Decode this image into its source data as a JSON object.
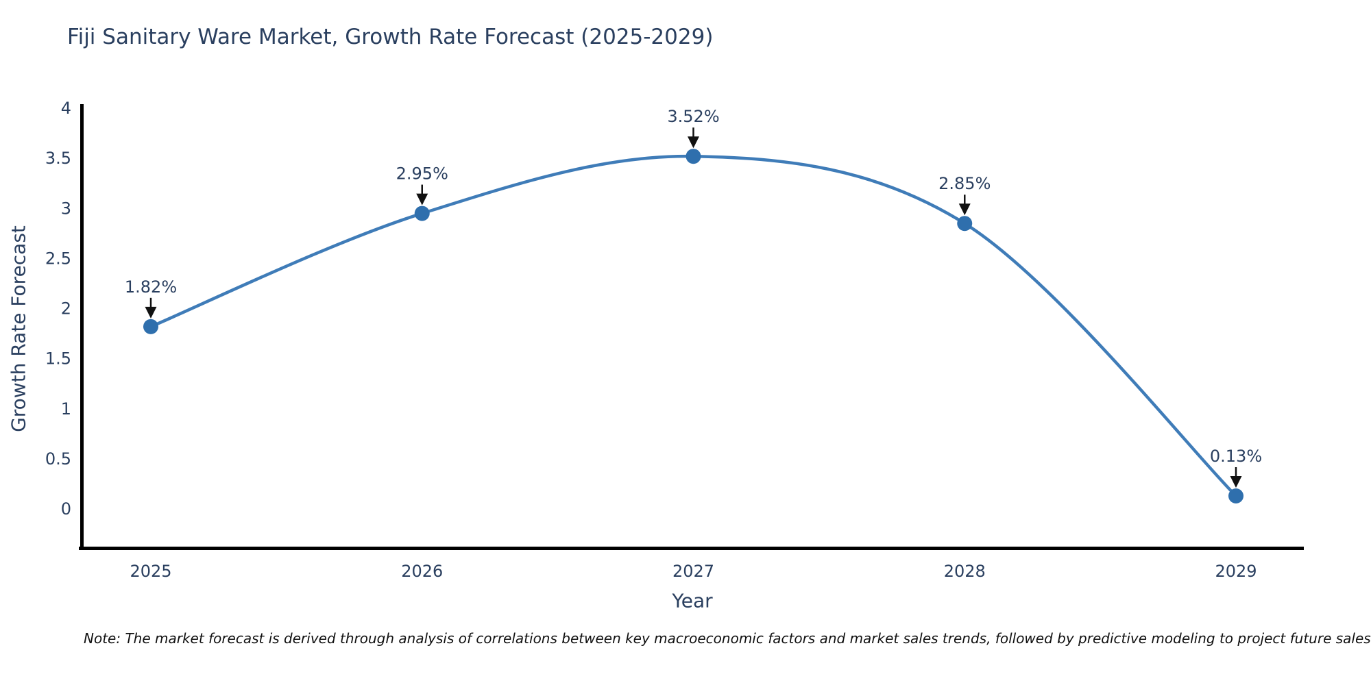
{
  "chart": {
    "title": "Fiji Sanitary Ware Market, Growth Rate Forecast (2025-2029)",
    "xlabel": "Year",
    "ylabel": "Growth Rate Forecast",
    "note": "Note: The market forecast is derived through analysis of correlations between key macroeconomic factors and market sales trends, followed by predictive modeling to project future sales"
  },
  "chart_data": {
    "type": "line",
    "line_shape": "spline",
    "title": "Fiji Sanitary Ware Market, Growth Rate Forecast (2025-2029)",
    "xlabel": "Year",
    "ylabel": "Growth Rate Forecast",
    "categories": [
      "2025",
      "2026",
      "2027",
      "2028",
      "2029"
    ],
    "values": [
      1.82,
      2.95,
      3.52,
      2.85,
      0.13
    ],
    "point_labels": [
      "1.82%",
      "2.95%",
      "3.52%",
      "2.85%",
      "0.13%"
    ],
    "ylim": [
      0,
      4
    ],
    "yticks": [
      0,
      0.5,
      1,
      1.5,
      2,
      2.5,
      3,
      3.5,
      4
    ],
    "grid": false,
    "legend": "none",
    "annotation_style": "value label with downward black arrow to marker",
    "colors": {
      "line": "#3f7cb8",
      "marker": "#2f6fad",
      "arrow": "#111111",
      "axis_line": "#000000",
      "text": "#2a3f5f"
    }
  }
}
